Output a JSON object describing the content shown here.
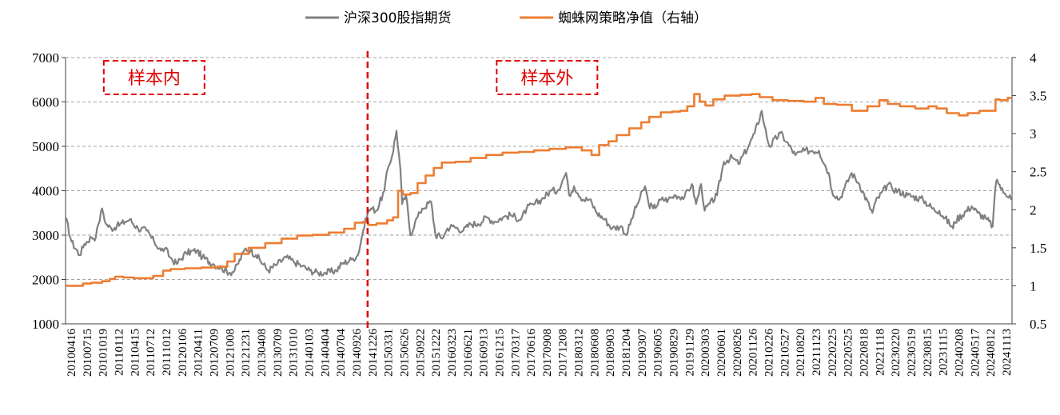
{
  "chart_data": {
    "type": "line",
    "title": "",
    "legend": {
      "position": "top-center"
    },
    "grid": {
      "horizontal": true,
      "style": "dashed"
    },
    "left_axis": {
      "ylim": [
        1000,
        7000
      ],
      "ticks": [
        "7000",
        "6000",
        "5000",
        "4000",
        "3000",
        "2000",
        "1000"
      ]
    },
    "right_axis": {
      "ylim": [
        0.5,
        4
      ],
      "ticks": [
        "4",
        "3.5",
        "3",
        "2.5",
        "2",
        "1.5",
        "1",
        "0.5"
      ]
    },
    "x_range": [
      "20100416",
      "20250101"
    ],
    "x_tick_labels": [
      "20100416",
      "20100715",
      "20101019",
      "20110112",
      "20110415",
      "20110712",
      "20111012",
      "20120106",
      "20120411",
      "20120709",
      "20121008",
      "20121231",
      "20130408",
      "20130709",
      "20131010",
      "20140103",
      "20140404",
      "20140704",
      "20140926",
      "20141226",
      "20150331",
      "20150626",
      "20150922",
      "20151222",
      "20160323",
      "20160621",
      "20160913",
      "20161215",
      "20170317",
      "20170616",
      "20170908",
      "20171208",
      "20180312",
      "20180608",
      "20180903",
      "20181204",
      "20190307",
      "20190605",
      "20190829",
      "20191129",
      "20200303",
      "20200601",
      "20200826",
      "20201126",
      "20210226",
      "20210527",
      "20210820",
      "20211123",
      "20220225",
      "20220525",
      "20220818",
      "20221118",
      "20230220",
      "20230519",
      "20230815",
      "20231115",
      "20240208",
      "20240517",
      "20240812",
      "20241113"
    ],
    "series": [
      {
        "name": "沪深300股指期货",
        "axis": "left",
        "color": "#808080",
        "points": [
          [
            "20100416",
            3400
          ],
          [
            "20100520",
            2850
          ],
          [
            "20100705",
            2550
          ],
          [
            "20100801",
            2800
          ],
          [
            "20100910",
            2950
          ],
          [
            "20101005",
            2950
          ],
          [
            "20101020",
            3250
          ],
          [
            "20101110",
            3600
          ],
          [
            "20101201",
            3250
          ],
          [
            "20110101",
            3150
          ],
          [
            "20110201",
            3200
          ],
          [
            "20110320",
            3300
          ],
          [
            "20110415",
            3350
          ],
          [
            "20110601",
            3150
          ],
          [
            "20110720",
            3100
          ],
          [
            "20110901",
            2850
          ],
          [
            "20111010",
            2650
          ],
          [
            "20111101",
            2700
          ],
          [
            "20111201",
            2500
          ],
          [
            "20120106",
            2350
          ],
          [
            "20120301",
            2600
          ],
          [
            "20120501",
            2650
          ],
          [
            "20120601",
            2500
          ],
          [
            "20120801",
            2350
          ],
          [
            "20120920",
            2250
          ],
          [
            "20121105",
            2150
          ],
          [
            "20121201",
            2200
          ],
          [
            "20130201",
            2700
          ],
          [
            "20130301",
            2650
          ],
          [
            "20130401",
            2550
          ],
          [
            "20130610",
            2200
          ],
          [
            "20130801",
            2350
          ],
          [
            "20130920",
            2500
          ],
          [
            "20131101",
            2400
          ],
          [
            "20131220",
            2300
          ],
          [
            "20140201",
            2200
          ],
          [
            "20140320",
            2150
          ],
          [
            "20140501",
            2150
          ],
          [
            "20140701",
            2200
          ],
          [
            "20140801",
            2350
          ],
          [
            "20140926",
            2450
          ],
          [
            "20141101",
            2550
          ],
          [
            "20141201",
            3100
          ],
          [
            "20141226",
            3500
          ],
          [
            "20150115",
            3600
          ],
          [
            "20150215",
            3550
          ],
          [
            "20150331",
            4000
          ],
          [
            "20150420",
            4500
          ],
          [
            "20150515",
            4800
          ],
          [
            "20150608",
            5350
          ],
          [
            "20150630",
            4500
          ],
          [
            "20150710",
            3700
          ],
          [
            "20150801",
            3900
          ],
          [
            "20150826",
            3000
          ],
          [
            "20150922",
            3300
          ],
          [
            "20151020",
            3500
          ],
          [
            "20151101",
            3600
          ],
          [
            "20151222",
            3750
          ],
          [
            "20160115",
            3000
          ],
          [
            "20160229",
            2950
          ],
          [
            "20160323",
            3150
          ],
          [
            "20160420",
            3200
          ],
          [
            "20160621",
            3100
          ],
          [
            "20160801",
            3250
          ],
          [
            "20160913",
            3250
          ],
          [
            "20161101",
            3400
          ],
          [
            "20161215",
            3300
          ],
          [
            "20170201",
            3400
          ],
          [
            "20170317",
            3450
          ],
          [
            "20170515",
            3350
          ],
          [
            "20170616",
            3600
          ],
          [
            "20170801",
            3700
          ],
          [
            "20170908",
            3800
          ],
          [
            "20171101",
            4000
          ],
          [
            "20171208",
            4000
          ],
          [
            "20180126",
            4400
          ],
          [
            "20180212",
            3900
          ],
          [
            "20180312",
            4100
          ],
          [
            "20180501",
            3800
          ],
          [
            "20180608",
            3800
          ],
          [
            "20180720",
            3500
          ],
          [
            "20180903",
            3350
          ],
          [
            "20181015",
            3150
          ],
          [
            "20181204",
            3200
          ],
          [
            "20190103",
            3000
          ],
          [
            "20190215",
            3500
          ],
          [
            "20190307",
            3700
          ],
          [
            "20190419",
            4100
          ],
          [
            "20190510",
            3700
          ],
          [
            "20190605",
            3600
          ],
          [
            "20190720",
            3800
          ],
          [
            "20190829",
            3800
          ],
          [
            "20191010",
            3900
          ],
          [
            "20191129",
            3850
          ],
          [
            "20200110",
            4150
          ],
          [
            "20200203",
            3700
          ],
          [
            "20200303",
            4150
          ],
          [
            "20200323",
            3550
          ],
          [
            "20200601",
            3900
          ],
          [
            "20200710",
            4650
          ],
          [
            "20200826",
            4750
          ],
          [
            "20201001",
            4600
          ],
          [
            "20201126",
            5000
          ],
          [
            "20210101",
            5300
          ],
          [
            "20210210",
            5800
          ],
          [
            "20210226",
            5450
          ],
          [
            "20210325",
            5000
          ],
          [
            "20210527",
            5300
          ],
          [
            "20210701",
            5100
          ],
          [
            "20210820",
            4800
          ],
          [
            "20211010",
            4900
          ],
          [
            "20211123",
            4900
          ],
          [
            "20220101",
            4900
          ],
          [
            "20220225",
            4400
          ],
          [
            "20220315",
            4000
          ],
          [
            "20220426",
            3800
          ],
          [
            "20220525",
            4050
          ],
          [
            "20220705",
            4400
          ],
          [
            "20220818",
            4150
          ],
          [
            "20221031",
            3500
          ],
          [
            "20221118",
            3750
          ],
          [
            "20230130",
            4150
          ],
          [
            "20230220",
            4050
          ],
          [
            "20230519",
            3900
          ],
          [
            "20230815",
            3800
          ],
          [
            "20231020",
            3550
          ],
          [
            "20231115",
            3550
          ],
          [
            "20240202",
            3150
          ],
          [
            "20240208",
            3300
          ],
          [
            "20240517",
            3650
          ],
          [
            "20240620",
            3500
          ],
          [
            "20240812",
            3350
          ],
          [
            "20240913",
            3200
          ],
          [
            "20240927",
            4000
          ],
          [
            "20241008",
            4250
          ],
          [
            "20241113",
            3950
          ],
          [
            "20241220",
            3900
          ],
          [
            "20250101",
            3800
          ]
        ]
      },
      {
        "name": "蜘蛛网策略净值（右轴）",
        "axis": "right",
        "color": "#ed7d31",
        "points": [
          [
            "20100416",
            1.0
          ],
          [
            "20100715",
            1.0
          ],
          [
            "20100801",
            1.03
          ],
          [
            "20101019",
            1.04
          ],
          [
            "20101201",
            1.06
          ],
          [
            "20110112",
            1.09
          ],
          [
            "20110201",
            1.12
          ],
          [
            "20110415",
            1.11
          ],
          [
            "20110601",
            1.1
          ],
          [
            "20110712",
            1.1
          ],
          [
            "20111012",
            1.13
          ],
          [
            "20111101",
            1.2
          ],
          [
            "20120106",
            1.22
          ],
          [
            "20120411",
            1.23
          ],
          [
            "20120709",
            1.24
          ],
          [
            "20121008",
            1.25
          ],
          [
            "20121101",
            1.32
          ],
          [
            "20121231",
            1.42
          ],
          [
            "20130408",
            1.5
          ],
          [
            "20130709",
            1.56
          ],
          [
            "20131010",
            1.62
          ],
          [
            "20140103",
            1.66
          ],
          [
            "20140404",
            1.67
          ],
          [
            "20140704",
            1.7
          ],
          [
            "20140926",
            1.75
          ],
          [
            "20141101",
            1.83
          ],
          [
            "20141226",
            1.84
          ],
          [
            "20150101",
            1.8
          ],
          [
            "20150331",
            1.82
          ],
          [
            "20150501",
            1.86
          ],
          [
            "20150608",
            1.9
          ],
          [
            "20150626",
            2.25
          ],
          [
            "20150801",
            2.2
          ],
          [
            "20150922",
            2.22
          ],
          [
            "20151020",
            2.35
          ],
          [
            "20151222",
            2.45
          ],
          [
            "20160120",
            2.55
          ],
          [
            "20160323",
            2.62
          ],
          [
            "20160621",
            2.63
          ],
          [
            "20160913",
            2.68
          ],
          [
            "20161215",
            2.72
          ],
          [
            "20170317",
            2.75
          ],
          [
            "20170616",
            2.76
          ],
          [
            "20170908",
            2.78
          ],
          [
            "20171208",
            2.8
          ],
          [
            "20180312",
            2.82
          ],
          [
            "20180608",
            2.78
          ],
          [
            "20180701",
            2.72
          ],
          [
            "20180903",
            2.85
          ],
          [
            "20181015",
            2.9
          ],
          [
            "20181204",
            2.98
          ],
          [
            "20190307",
            3.07
          ],
          [
            "20190420",
            3.15
          ],
          [
            "20190605",
            3.22
          ],
          [
            "20190829",
            3.28
          ],
          [
            "20191010",
            3.29
          ],
          [
            "20191129",
            3.3
          ],
          [
            "20200101",
            3.36
          ],
          [
            "20200215",
            3.52
          ],
          [
            "20200303",
            3.42
          ],
          [
            "20200420",
            3.37
          ],
          [
            "20200601",
            3.45
          ],
          [
            "20200826",
            3.5
          ],
          [
            "20201126",
            3.51
          ],
          [
            "20210101",
            3.52
          ],
          [
            "20210226",
            3.48
          ],
          [
            "20210527",
            3.44
          ],
          [
            "20210820",
            3.43
          ],
          [
            "20211123",
            3.42
          ],
          [
            "20220101",
            3.47
          ],
          [
            "20220225",
            3.39
          ],
          [
            "20220525",
            3.38
          ],
          [
            "20220818",
            3.3
          ],
          [
            "20221118",
            3.36
          ],
          [
            "20230101",
            3.44
          ],
          [
            "20230220",
            3.39
          ],
          [
            "20230519",
            3.36
          ],
          [
            "20230815",
            3.33
          ],
          [
            "20231015",
            3.36
          ],
          [
            "20231115",
            3.33
          ],
          [
            "20240208",
            3.27
          ],
          [
            "20240401",
            3.24
          ],
          [
            "20240517",
            3.27
          ],
          [
            "20240812",
            3.3
          ],
          [
            "20240927",
            3.3
          ],
          [
            "20241001",
            3.45
          ],
          [
            "20241113",
            3.44
          ],
          [
            "20250101",
            3.47
          ]
        ]
      }
    ],
    "annotations": [
      {
        "text": "样本内",
        "anchor_date": "20110901",
        "anchor_value": 6550,
        "axis": "left"
      },
      {
        "text": "样本外",
        "anchor_date": "20171010",
        "anchor_value": 6550,
        "axis": "left"
      }
    ],
    "divider": {
      "date": "20141226",
      "color": "#e00000",
      "style": "dashed"
    }
  }
}
